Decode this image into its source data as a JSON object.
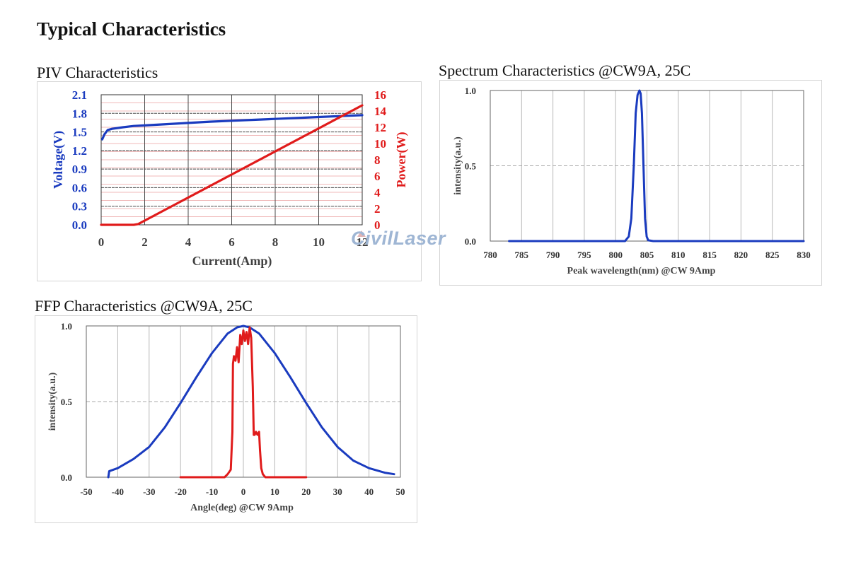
{
  "page_title": "Typical Characteristics",
  "watermark": "CivilLaser",
  "sections": {
    "piv": "PIV Characteristics",
    "spectrum": "Spectrum Characteristics @CW9A, 25C",
    "ffp": "FFP Characteristics @CW9A, 25C"
  },
  "colors": {
    "blue": "#1a3bbf",
    "red": "#e01b1b",
    "grid": "#9a9a9a",
    "dash": "#a8a8a8"
  },
  "chart_data": [
    {
      "type": "line",
      "name": "piv",
      "xlabel": "Current(Amp)",
      "ylabel": "Voltage(V)",
      "y2label": "Power(W)",
      "xlim": [
        0,
        12
      ],
      "ylim": [
        0,
        2.1
      ],
      "y2lim": [
        0,
        16
      ],
      "xticks": [
        "0",
        "2",
        "4",
        "6",
        "8",
        "10",
        "12"
      ],
      "yticks": [
        "0.0",
        "0.3",
        "0.6",
        "0.9",
        "1.2",
        "1.5",
        "1.8",
        "2.1"
      ],
      "y2ticks": [
        "0",
        "2",
        "4",
        "6",
        "8",
        "10",
        "12",
        "14",
        "16"
      ],
      "grid": true,
      "series": [
        {
          "axis": "left",
          "color": "#1a3bbf",
          "x": [
            0.05,
            0.15,
            0.3,
            0.5,
            1.0,
            1.5,
            2,
            3,
            4,
            5,
            6,
            7,
            8,
            9,
            10,
            11,
            12
          ],
          "y": [
            1.38,
            1.46,
            1.53,
            1.55,
            1.575,
            1.595,
            1.605,
            1.625,
            1.645,
            1.665,
            1.68,
            1.695,
            1.71,
            1.725,
            1.74,
            1.755,
            1.77
          ]
        },
        {
          "axis": "right",
          "color": "#e01b1b",
          "x": [
            0,
            1.5,
            1.7,
            12
          ],
          "y": [
            0,
            0,
            0.1,
            14.7
          ]
        }
      ]
    },
    {
      "type": "line",
      "name": "spectrum",
      "xlabel": "Peak wavelength(nm) @CW 9Amp",
      "ylabel": "intensity(a.u.)",
      "xlim": [
        780,
        830
      ],
      "ylim": [
        0,
        1.0
      ],
      "xticks": [
        "780",
        "785",
        "790",
        "795",
        "800",
        "805",
        "810",
        "815",
        "820",
        "825",
        "830"
      ],
      "yticks": [
        "0.0",
        "0.5",
        "1.0"
      ],
      "grid": true,
      "series": [
        {
          "color": "#1a3bbf",
          "x": [
            783,
            801.5,
            802.1,
            802.5,
            802.9,
            803.2,
            803.5,
            803.8,
            804.0,
            804.2,
            804.45,
            804.7,
            804.95,
            805.2,
            806,
            830
          ],
          "y": [
            0.0,
            0.0,
            0.03,
            0.15,
            0.5,
            0.85,
            0.97,
            1.0,
            0.98,
            0.85,
            0.5,
            0.15,
            0.03,
            0.005,
            0.0,
            0.0
          ]
        }
      ]
    },
    {
      "type": "line",
      "name": "ffp",
      "xlabel": "Angle(deg) @CW 9Amp",
      "ylabel": "intensity(a.u.)",
      "xlim": [
        -50,
        50
      ],
      "ylim": [
        0,
        1.0
      ],
      "xticks": [
        "-50",
        "-40",
        "-30",
        "-20",
        "-10",
        "0",
        "10",
        "20",
        "30",
        "40",
        "50"
      ],
      "yticks": [
        "0.0",
        "0.5",
        "1.0"
      ],
      "grid": true,
      "series": [
        {
          "color": "#1a3bbf",
          "x": [
            -43,
            -42.7,
            -40,
            -35,
            -30,
            -25,
            -20,
            -15,
            -10,
            -5,
            -2,
            0,
            2,
            5,
            10,
            15,
            20,
            25,
            30,
            35,
            40,
            45,
            48
          ],
          "y": [
            0.0,
            0.04,
            0.06,
            0.12,
            0.2,
            0.33,
            0.49,
            0.66,
            0.82,
            0.95,
            0.99,
            1.0,
            0.99,
            0.95,
            0.82,
            0.66,
            0.49,
            0.33,
            0.2,
            0.11,
            0.06,
            0.03,
            0.02
          ]
        },
        {
          "color": "#e01b1b",
          "x": [
            -20,
            -6,
            -5,
            -4,
            -3.5,
            -3.3,
            -3.0,
            -2.5,
            -2,
            -1.5,
            -1,
            -0.5,
            0,
            0.5,
            1,
            1.5,
            2,
            2.5,
            3,
            3.3,
            3.6,
            4,
            4.5,
            5,
            5.3,
            5.7,
            6.2,
            7,
            20
          ],
          "y": [
            0.0,
            0.0,
            0.02,
            0.05,
            0.3,
            0.75,
            0.8,
            0.77,
            0.86,
            0.76,
            0.94,
            0.88,
            0.97,
            0.9,
            0.96,
            0.88,
            0.99,
            0.92,
            0.6,
            0.28,
            0.28,
            0.3,
            0.28,
            0.3,
            0.18,
            0.06,
            0.02,
            0.0,
            0.0
          ]
        }
      ]
    }
  ]
}
